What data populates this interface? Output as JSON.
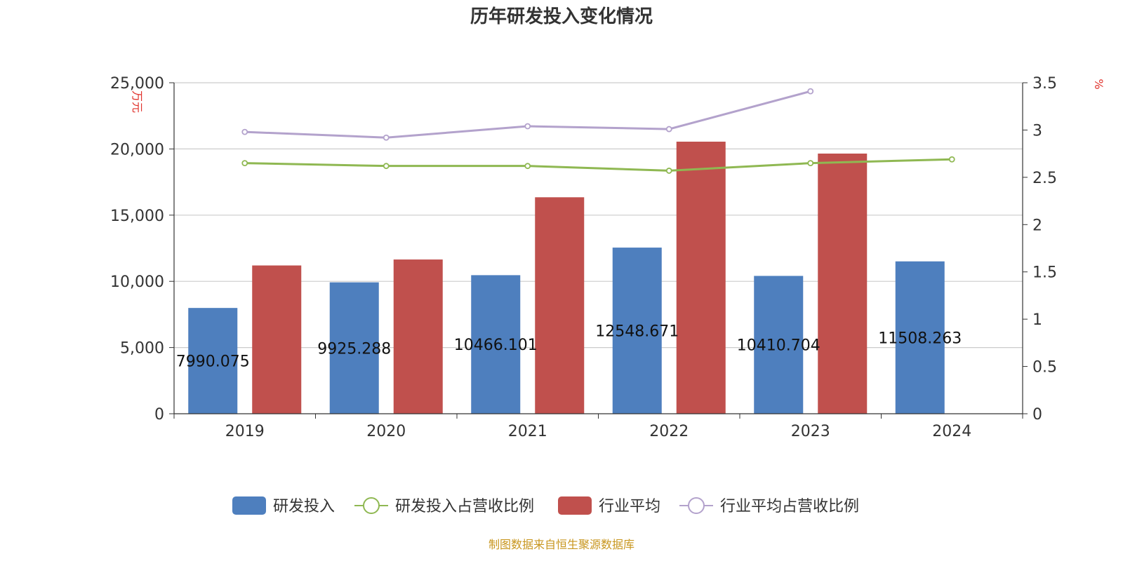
{
  "chart_data": {
    "type": "bar",
    "title": "历年研发投入变化情况",
    "categories": [
      "2019",
      "2020",
      "2021",
      "2022",
      "2023",
      "2024"
    ],
    "y_left": {
      "unit": "万元",
      "ylim": [
        0,
        25000
      ],
      "ticks": [
        "0",
        "5,000",
        "10,000",
        "15,000",
        "20,000",
        "25,000"
      ]
    },
    "y_right": {
      "unit": "%",
      "ylim": [
        0,
        3.5
      ],
      "ticks": [
        "0",
        "0.5",
        "1",
        "1.5",
        "2",
        "2.5",
        "3",
        "3.5"
      ]
    },
    "series": [
      {
        "name": "研发投入",
        "type": "bar",
        "axis": "left",
        "color": "#4e7fbe",
        "values": [
          7990.075,
          9925.288,
          10466.101,
          12548.671,
          10410.704,
          11508.263
        ],
        "labels": [
          "7990.075",
          "9925.288",
          "10466.101",
          "12548.671",
          "10410.704",
          "11508.263"
        ]
      },
      {
        "name": "研发投入占营收比例",
        "type": "line",
        "axis": "right",
        "color": "#8fb852",
        "values": [
          2.65,
          2.62,
          2.62,
          2.57,
          2.65,
          2.69
        ]
      },
      {
        "name": "行业平均",
        "type": "bar",
        "axis": "left",
        "color": "#c0504d",
        "values": [
          11200,
          11650,
          16350,
          20550,
          19650,
          null
        ]
      },
      {
        "name": "行业平均占营收比例",
        "type": "line",
        "axis": "right",
        "color": "#b3a2cc",
        "values": [
          2.98,
          2.92,
          3.04,
          3.01,
          3.41,
          null
        ]
      }
    ],
    "grid": true,
    "legend": "bottom-center"
  },
  "source_note": "制图数据来自恒生聚源数据库"
}
